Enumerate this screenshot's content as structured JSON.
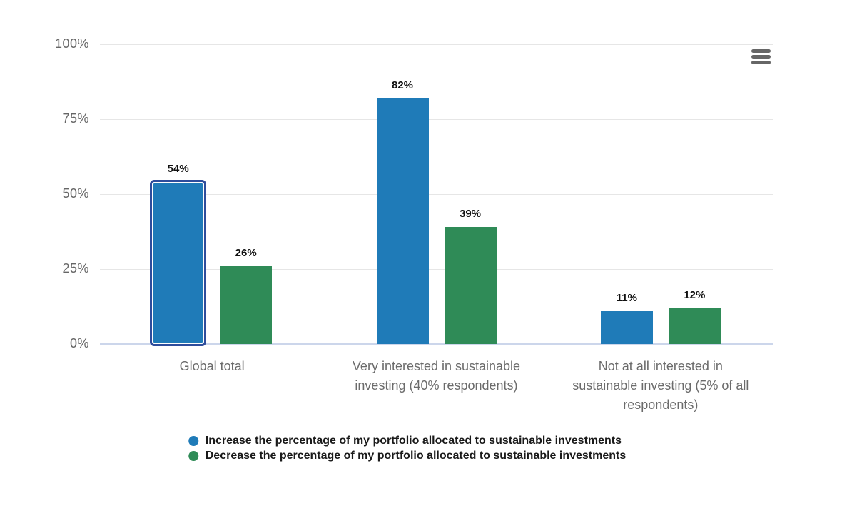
{
  "chart_data": {
    "type": "bar",
    "categories": [
      "Global total",
      "Very interested in sustainable investing (40% respondents)",
      "Not at all interested in sustainable investing (5% of all respondents)"
    ],
    "series": [
      {
        "name": "Increase the percentage of my portfolio allocated to sustainable investments",
        "color": "#1f7bb8",
        "values": [
          54,
          82,
          11
        ],
        "labels": [
          "54%",
          "82%",
          "11%"
        ]
      },
      {
        "name": "Decrease the percentage of my portfolio allocated to sustainable investments",
        "color": "#2f8b57",
        "values": [
          26,
          39,
          12
        ],
        "labels": [
          "26%",
          "39%",
          "12%"
        ]
      }
    ],
    "y_axis": {
      "ticks": [
        {
          "label": "100%",
          "value": 100
        },
        {
          "label": "75%",
          "value": 75
        },
        {
          "label": "50%",
          "value": 50
        },
        {
          "label": "25%",
          "value": 25
        },
        {
          "label": "0%",
          "value": 0
        }
      ],
      "min": 0,
      "max": 100
    },
    "grid": true,
    "legend_position": "bottom-left-markers",
    "selected_point": {
      "series_index": 0,
      "category_index": 0
    }
  },
  "style": {
    "selected_border_color": "#2e4d9c",
    "selected_inner_color": "#ffffff",
    "gridline_color": "#e6e6e6",
    "axis_line_color": "#ccd6eb",
    "y_label_color": "#666666",
    "category_label_color": "#6b6b6b",
    "data_label_color": "#111111",
    "legend_text_color": "#1a1a1a",
    "menu_icon_color": "#666666"
  },
  "toolbar": {
    "menu_icon": "hamburger-icon"
  }
}
